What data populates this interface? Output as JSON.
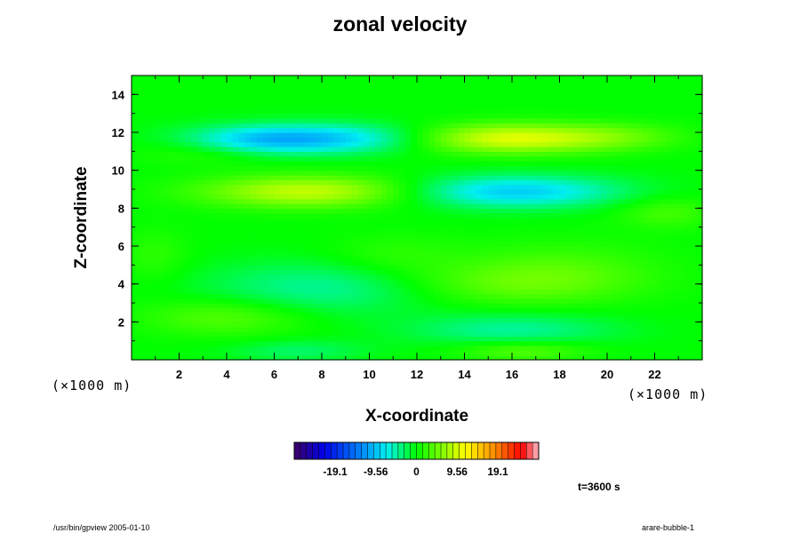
{
  "figure": {
    "title": "zonal velocity",
    "time_label": "t=3600 s",
    "footer_left": "/usr/bin/gpview 2005-01-10",
    "footer_right": "arare-bubble-1"
  },
  "chart_data": {
    "type": "heatmap",
    "title": "zonal velocity",
    "xlabel": "X-coordinate",
    "ylabel": "Z-coordinate",
    "x_unit_label": "(×1000 m)",
    "y_unit_label": "(×1000 m)",
    "xlim": [
      0,
      24
    ],
    "ylim": [
      0,
      15
    ],
    "x_ticks": [
      2,
      4,
      6,
      8,
      10,
      12,
      14,
      16,
      18,
      20,
      22
    ],
    "y_ticks": [
      2,
      4,
      6,
      8,
      10,
      12,
      14
    ],
    "x_minor_step": 1,
    "y_minor_step": 1,
    "color_range": [
      -28.7,
      28.7
    ],
    "colorbar_ticks": [
      -19.1,
      -9.56,
      0,
      9.56,
      19.1
    ],
    "colorbar_tick_labels": [
      "-19.1",
      "-9.56",
      "0",
      "9.56",
      "19.1"
    ],
    "colorbar_levels": 40,
    "field_features": [
      {
        "x": 8.0,
        "z": 11.7,
        "value": -9.5,
        "sx": 3.2,
        "sz": 0.55
      },
      {
        "x": 5.0,
        "z": 11.6,
        "value": -4.0,
        "sx": 2.0,
        "sz": 0.5
      },
      {
        "x": 15.8,
        "z": 11.7,
        "value": 10.5,
        "sx": 3.0,
        "sz": 0.55
      },
      {
        "x": 20.5,
        "z": 11.8,
        "value": 3.0,
        "sx": 2.0,
        "sz": 0.5
      },
      {
        "x": 3.0,
        "z": 11.0,
        "value": 2.0,
        "sx": 2.0,
        "sz": 0.5
      },
      {
        "x": 7.5,
        "z": 8.9,
        "value": 9.0,
        "sx": 3.2,
        "sz": 0.6
      },
      {
        "x": 16.0,
        "z": 8.9,
        "value": -9.0,
        "sx": 3.2,
        "sz": 0.6
      },
      {
        "x": 22.5,
        "z": 7.8,
        "value": 3.0,
        "sx": 1.5,
        "sz": 0.6
      },
      {
        "x": 11.0,
        "z": 5.5,
        "value": 2.0,
        "sx": 2.0,
        "sz": 0.8
      },
      {
        "x": 18.0,
        "z": 5.0,
        "value": 2.5,
        "sx": 3.0,
        "sz": 1.0
      },
      {
        "x": 1.0,
        "z": 5.5,
        "value": 2.0,
        "sx": 1.0,
        "sz": 1.0
      },
      {
        "x": 8.0,
        "z": 3.8,
        "value": -4.5,
        "sx": 3.5,
        "sz": 1.0
      },
      {
        "x": 16.0,
        "z": 4.0,
        "value": 4.0,
        "sx": 3.5,
        "sz": 0.8
      },
      {
        "x": 4.0,
        "z": 2.3,
        "value": 4.0,
        "sx": 2.5,
        "sz": 0.7
      },
      {
        "x": 16.0,
        "z": 1.6,
        "value": -4.5,
        "sx": 3.0,
        "sz": 0.6
      },
      {
        "x": 7.0,
        "z": 0.5,
        "value": -3.0,
        "sx": 2.0,
        "sz": 0.4
      },
      {
        "x": 16.5,
        "z": 0.5,
        "value": 4.0,
        "sx": 2.0,
        "sz": 0.4
      }
    ],
    "grid": false,
    "colormap": "rainbow"
  },
  "colors": {
    "background": "#ffffff",
    "axis": "#000000"
  }
}
